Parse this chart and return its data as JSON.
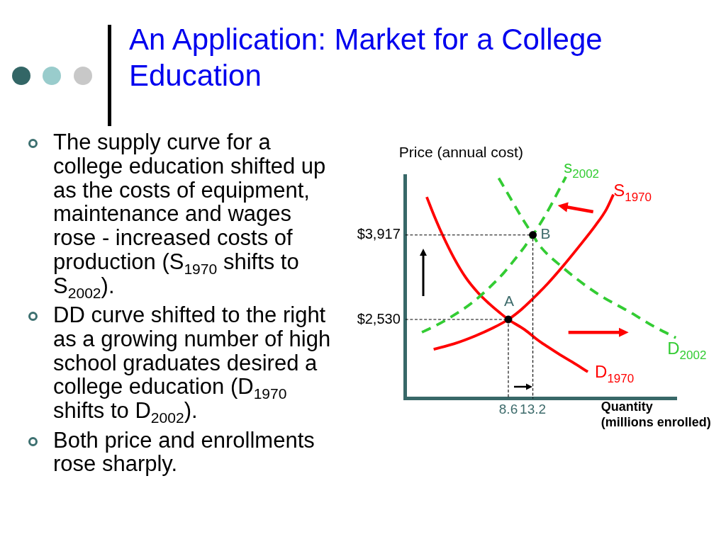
{
  "chart_data": {
    "type": "line",
    "title": "An Application: Market for a College Education",
    "ylabel": "Price (annual cost)",
    "xlabel": "Quantity\n(millions enrolled)",
    "xlim": [
      -10.7,
      40.2
    ],
    "ylim": [
      1230,
      4890
    ],
    "xticks": [
      8.6,
      13.2
    ],
    "yticks": [
      {
        "value": 2530,
        "label": "$2,530"
      },
      {
        "value": 3917,
        "label": "$3,917"
      }
    ],
    "series": [
      {
        "name": "D$_{1970}$",
        "color": "#ff0000",
        "line_style": "solid",
        "marker": "none",
        "x": [
          -6.7,
          -5.2,
          -3.7,
          -1.6,
          0.6,
          3.0,
          5.0,
          7.0,
          8.6,
          11.7,
          14.3,
          16.0,
          18.3,
          20.6,
          23.5
        ],
        "values": [
          4540,
          4210,
          3910,
          3540,
          3220,
          2960,
          2790,
          2640,
          2530,
          2360,
          2180,
          2080,
          1950,
          1830,
          1670
        ]
      },
      {
        "name": "S$_{1970}$",
        "color": "#ff0000",
        "line_style": "solid",
        "marker": "none",
        "x": [
          -5.4,
          -1.6,
          2.4,
          5.7,
          8.6,
          11.0,
          13.2,
          16.0,
          18.7,
          21.6,
          25.0,
          27.0,
          28.3
        ],
        "values": [
          2040,
          2130,
          2260,
          2390,
          2530,
          2690,
          2870,
          3120,
          3390,
          3700,
          4080,
          4340,
          4580
        ]
      },
      {
        "name": "s$_{2002}$",
        "color": "#33cc33",
        "line_style": "dashed",
        "marker": "none",
        "x": [
          -7.6,
          -5.2,
          -1.6,
          1.9,
          5.0,
          7.7,
          9.4,
          11.7,
          13.2,
          14.5,
          16.5,
          18.3,
          19.4
        ],
        "values": [
          2320,
          2420,
          2600,
          2810,
          3050,
          3290,
          3470,
          3730,
          3917,
          4090,
          4390,
          4690,
          4870
        ]
      },
      {
        "name": "D$_{2002}$",
        "color": "#33cc33",
        "line_style": "dashed",
        "marker": "none",
        "x": [
          6.8,
          9.0,
          11.2,
          13.2,
          14.3,
          18.7,
          25.0,
          31.6,
          36.0,
          40.0
        ],
        "values": [
          4850,
          4520,
          4190,
          3917,
          3760,
          3390,
          2970,
          2640,
          2410,
          2230
        ]
      },
      {
        "color": "#000000",
        "line_style": "dashed",
        "marker": "none",
        "x": [
          -10.7,
          8.6,
          8.6
        ],
        "values": [
          2530,
          2530,
          1230
        ]
      },
      {
        "color": "#000000",
        "line_style": "dashed",
        "marker": "none",
        "x": [
          -10.7,
          13.2,
          13.2
        ],
        "values": [
          3917,
          3917,
          1230
        ]
      },
      {
        "type": "scatter",
        "color": "#000000",
        "marker": "circle",
        "x": [
          8.6,
          13.2
        ],
        "values": [
          2530,
          3917
        ]
      }
    ],
    "annotations": [
      "The supply curve for a college education shifted up as the costs of equipment, maintenance and wages rose - increased costs of production (S$_{1970}$ shifts to S$_{2002}$).",
      "DD curve shifted to the right as a growing number of high school graduates desired a college education (D$_{1970}$ shifts to D$_{2002}$).",
      "Both price and enrollments rose sharply.",
      {
        "text": "A",
        "x": 8.6,
        "y": 2530
      },
      {
        "text": "B",
        "x": 13.2,
        "y": 3917
      }
    ]
  }
}
